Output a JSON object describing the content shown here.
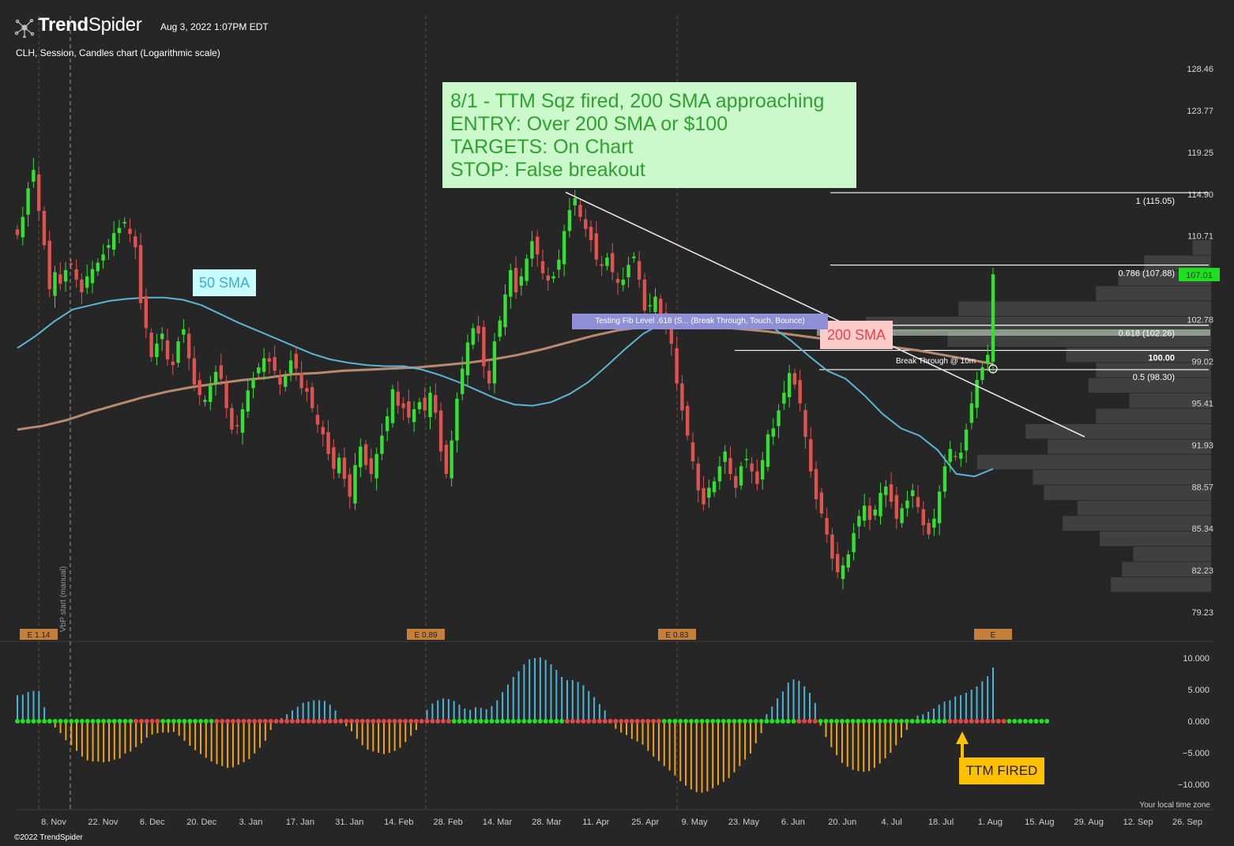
{
  "header": {
    "brand_bold": "Trend",
    "brand_rest": "Spider",
    "timestamp": "Aug 3, 2022 1:07PM EDT",
    "subtitle": "CLH, Session, Candles chart (Logarithmic scale)",
    "copyright": "©2022 TrendSpider",
    "timezone_note": "Your local time zone"
  },
  "colors": {
    "background": "#262626",
    "up": "#33e033",
    "down": "#e0524f",
    "sma50": "#5bb6d6",
    "sma200": "#b98a6e",
    "hist_pos": "#4cb4d8",
    "hist_neg": "#f0a21e",
    "sqz_on": "#e04848",
    "sqz_off": "#22e022"
  },
  "annotations": {
    "note_lines": [
      "8/1 - TTM Sqz fired, 200 SMA approaching",
      "ENTRY: Over 200 SMA or $100",
      "TARGETS: On Chart",
      "STOP: False breakout"
    ],
    "sma50_label": "50 SMA",
    "sma200_label": "200 SMA",
    "fib_test_label": "Testing Fib Level .618 (S... (Break Through, Touch, Bounce)",
    "break_through_label": "Break Through @ 10m",
    "ttm_fired_label": "TTM FIRED",
    "vbp_label": "VbP start (manual)"
  },
  "chart_data": [
    {
      "type": "candlestick",
      "title": "CLH, Session, Candles chart (Logarithmic scale)",
      "scale": "log",
      "ylim": [
        77.8,
        131.5
      ],
      "y_ticks": [
        128.46,
        123.77,
        119.25,
        114.9,
        110.71,
        102.78,
        99.02,
        95.41,
        91.93,
        88.57,
        85.34,
        82.23,
        79.23
      ],
      "x_labels": [
        "8. Nov",
        "22. Nov",
        "6. Dec",
        "20. Dec",
        "3. Jan",
        "17. Jan",
        "31. Jan",
        "14. Feb",
        "28. Feb",
        "14. Mar",
        "28. Mar",
        "11. Apr",
        "25. Apr",
        "9. May",
        "23. May",
        "6. Jun",
        "20. Jun",
        "4. Jul",
        "18. Jul",
        "1. Aug",
        "15. Aug",
        "29. Aug",
        "12. Sep",
        "26. Sep"
      ],
      "last_price": "107.01",
      "closes": [
        110.8,
        112.6,
        115.5,
        117.4,
        113.2,
        109.8,
        105.6,
        107.2,
        106.1,
        107.4,
        107.9,
        106.5,
        105.3,
        106.8,
        107.5,
        108.1,
        108.9,
        109.8,
        111.0,
        111.5,
        112.1,
        110.9,
        109.6,
        104.3,
        102.0,
        99.4,
        100.6,
        101.5,
        99.2,
        98.7,
        100.8,
        101.9,
        99.3,
        97.0,
        96.1,
        95.7,
        96.9,
        98.1,
        97.5,
        95.0,
        93.2,
        93.5,
        94.9,
        96.5,
        97.4,
        98.5,
        99.3,
        99.0,
        98.2,
        97.0,
        97.8,
        99.1,
        98.4,
        96.7,
        96.4,
        95.0,
        93.6,
        92.8,
        91.2,
        90.0,
        90.9,
        89.2,
        87.8,
        90.3,
        91.8,
        90.3,
        89.6,
        91.2,
        92.7,
        94.3,
        96.6,
        95.2,
        95.0,
        94.2,
        94.9,
        95.5,
        94.8,
        96.3,
        94.6,
        91.4,
        89.6,
        92.3,
        95.8,
        98.4,
        100.7,
        102.0,
        101.5,
        98.6,
        97.1,
        100.8,
        102.7,
        105.1,
        107.4,
        105.3,
        106.8,
        108.5,
        110.2,
        108.9,
        107.1,
        106.4,
        106.8,
        108.4,
        111.2,
        113.3,
        114.5,
        112.6,
        111.4,
        110.3,
        108.4,
        107.8,
        108.6,
        107.2,
        106.2,
        106.5,
        107.9,
        108.7,
        106.5,
        103.6,
        104.1,
        104.9,
        103.2,
        102.2,
        100.6,
        97.1,
        94.8,
        92.7,
        90.6,
        88.3,
        87.2,
        88.5,
        89.0,
        90.2,
        91.4,
        89.6,
        88.5,
        90.2,
        90.8,
        89.8,
        88.8,
        90.7,
        92.8,
        93.3,
        94.8,
        96.3,
        98.0,
        97.0,
        95.4,
        92.6,
        89.8,
        87.6,
        86.5,
        84.9,
        83.1,
        82.1,
        82.6,
        83.4,
        85.0,
        86.3,
        87.1,
        86.0,
        86.8,
        88.1,
        88.6,
        87.4,
        86.1,
        86.9,
        87.5,
        88.3,
        87.0,
        85.6,
        84.9,
        86.1,
        88.2,
        90.2,
        91.6,
        91.0,
        91.3,
        93.2,
        95.4,
        97.4,
        98.5,
        99.6,
        107.0
      ],
      "sma50": [
        100.2,
        101.3,
        102.6,
        103.7,
        104.1,
        104.5,
        104.7,
        104.8,
        104.8,
        104.6,
        104.1,
        103.3,
        102.5,
        101.8,
        101.1,
        100.4,
        99.7,
        99.2,
        98.9,
        98.7,
        98.6,
        98.6,
        98.3,
        97.8,
        97.2,
        96.5,
        95.8,
        95.3,
        95.2,
        95.5,
        96.2,
        97.2,
        98.6,
        100.1,
        101.5,
        102.4,
        102.8,
        103.0,
        103.1,
        103.2,
        102.9,
        102.1,
        100.9,
        99.5,
        98.2,
        97.5,
        96.1,
        94.5,
        93.3,
        92.7,
        91.5,
        89.6,
        89.4,
        90.0
      ],
      "sma200": [
        93.2,
        93.5,
        94.0,
        94.7,
        95.3,
        95.9,
        96.4,
        96.8,
        97.1,
        97.4,
        97.6,
        97.9,
        98.0,
        98.2,
        98.3,
        98.4,
        98.5,
        98.7,
        98.9,
        99.2,
        99.6,
        100.1,
        100.7,
        101.3,
        101.8,
        102.1,
        102.3,
        102.3,
        102.1,
        101.9,
        101.7,
        101.4,
        101.1,
        100.9,
        100.6,
        100.3,
        100.0,
        99.6,
        99.2,
        98.8
      ],
      "fib_levels": [
        {
          "label": "1 (115.05)",
          "value": 115.05
        },
        {
          "label": "0.786 (107.88)",
          "value": 107.88
        },
        {
          "label": "0.618 (102.26)",
          "value": 102.26
        },
        {
          "label": "100.00",
          "value": 100.0
        },
        {
          "label": "0.5 (98.30)",
          "value": 98.3
        }
      ],
      "trendline": {
        "from": 115.1,
        "to": 92.6
      },
      "volume_profile": [
        0.05,
        0.18,
        0.25,
        0.31,
        0.68,
        0.93,
        0.71,
        0.39,
        0.31,
        0.33,
        0.22,
        0.31,
        0.5,
        0.44,
        0.63,
        0.48,
        0.45,
        0.36,
        0.4,
        0.3,
        0.21,
        0.24,
        0.27
      ],
      "earnings": [
        "E 1.14",
        "E 0.89",
        "E 0.83",
        "E"
      ]
    },
    {
      "type": "bar",
      "title": "TTM Squeeze momentum",
      "ylim": [
        -12.5,
        12.5
      ],
      "y_ticks": [
        10.0,
        5.0,
        0.0,
        -5.0,
        -10.0
      ],
      "y_tick_labels": [
        "10.000",
        "5.000",
        "0.000",
        "−5.000",
        "−10.000"
      ],
      "values": [
        4.1,
        4.2,
        4.6,
        4.8,
        4.8,
        2.2,
        0.3,
        -1.0,
        -1.9,
        -3.0,
        -3.8,
        -4.7,
        -5.6,
        -6.2,
        -6.4,
        -6.4,
        -6.5,
        -6.4,
        -6.1,
        -5.9,
        -5.1,
        -4.8,
        -4.1,
        -3.5,
        -2.6,
        -2.1,
        -1.9,
        -1.8,
        -1.8,
        -1.7,
        -2.3,
        -3.1,
        -3.9,
        -4.6,
        -5.2,
        -5.8,
        -6.4,
        -6.8,
        -7.1,
        -7.4,
        -7.3,
        -6.9,
        -6.5,
        -6.0,
        -5.1,
        -4.2,
        -3.1,
        -1.4,
        0.3,
        0.5,
        1.1,
        1.7,
        2.3,
        2.9,
        3.1,
        3.3,
        3.3,
        3.2,
        2.6,
        1.7,
        0.4,
        -0.8,
        -1.6,
        -2.8,
        -3.8,
        -4.5,
        -4.8,
        -5.0,
        -5.2,
        -5.0,
        -4.7,
        -4.2,
        -3.3,
        -2.3,
        -1.4,
        0.2,
        1.8,
        2.8,
        3.3,
        3.6,
        3.5,
        3.2,
        2.6,
        2.0,
        1.8,
        2.2,
        2.1,
        1.9,
        2.4,
        3.3,
        4.6,
        5.8,
        7.0,
        7.9,
        9.0,
        9.8,
        10.0,
        10.1,
        9.7,
        9.0,
        8.1,
        7.0,
        6.5,
        6.5,
        6.2,
        5.7,
        4.8,
        3.8,
        2.7,
        1.7,
        0.3,
        -1.2,
        -1.8,
        -2.2,
        -2.8,
        -3.2,
        -3.7,
        -4.7,
        -5.6,
        -6.3,
        -7.1,
        -7.8,
        -8.6,
        -9.5,
        -10.2,
        -10.8,
        -11.2,
        -11.3,
        -11.1,
        -10.6,
        -10.1,
        -9.6,
        -9.0,
        -8.1,
        -7.1,
        -6.1,
        -5.1,
        -3.5,
        -1.9,
        1.1,
        2.3,
        3.6,
        4.7,
        6.1,
        6.6,
        6.4,
        5.5,
        4.5,
        2.9,
        -0.7,
        -2.5,
        -4.1,
        -5.4,
        -6.6,
        -7.2,
        -7.7,
        -7.9,
        -8.0,
        -7.9,
        -7.4,
        -6.7,
        -5.9,
        -5.0,
        -3.8,
        -2.6,
        -1.4,
        0.2,
        0.9,
        1.1,
        1.5,
        2.0,
        2.6,
        3.1,
        3.3,
        3.9,
        4.1,
        4.5,
        5.0,
        5.5,
        6.3,
        7.1,
        8.5
      ],
      "squeeze_on": [
        false,
        false,
        false,
        false,
        false,
        false,
        false,
        false,
        false,
        false,
        false,
        false,
        false,
        false,
        false,
        false,
        false,
        false,
        false,
        false,
        false,
        false,
        true,
        true,
        true,
        true,
        true,
        false,
        false,
        false,
        false,
        false,
        false,
        false,
        false,
        false,
        false,
        true,
        true,
        true,
        true,
        true,
        true,
        true,
        true,
        true,
        true,
        true,
        true,
        true,
        true,
        true,
        true,
        true,
        true,
        true,
        true,
        true,
        true,
        true,
        true,
        true,
        true,
        true,
        true,
        true,
        true,
        true,
        true,
        true,
        true,
        true,
        true,
        true,
        true,
        true,
        true,
        true,
        true,
        true,
        true,
        false,
        false,
        false,
        false,
        false,
        false,
        false,
        false,
        false,
        false,
        false,
        false,
        false,
        false,
        false,
        false,
        false,
        false,
        false,
        false,
        false,
        true,
        true,
        true,
        true,
        true,
        true,
        true,
        true,
        true,
        true,
        true,
        true,
        true,
        true,
        true,
        true,
        true,
        true,
        false,
        false,
        false,
        false,
        false,
        false,
        false,
        false,
        false,
        false,
        false,
        false,
        false,
        false,
        false,
        false,
        false,
        false,
        false,
        false,
        false,
        false,
        false,
        false,
        false,
        true,
        true,
        true,
        true,
        false,
        false,
        false,
        false,
        false,
        false,
        false,
        false,
        false,
        false,
        false,
        false,
        false,
        false,
        false,
        false,
        false,
        false,
        false,
        false,
        false,
        false,
        false,
        false,
        true,
        true,
        true,
        true,
        true,
        true,
        true,
        true,
        true,
        true,
        true,
        false,
        false,
        false,
        false,
        false,
        false,
        false,
        false
      ]
    }
  ]
}
